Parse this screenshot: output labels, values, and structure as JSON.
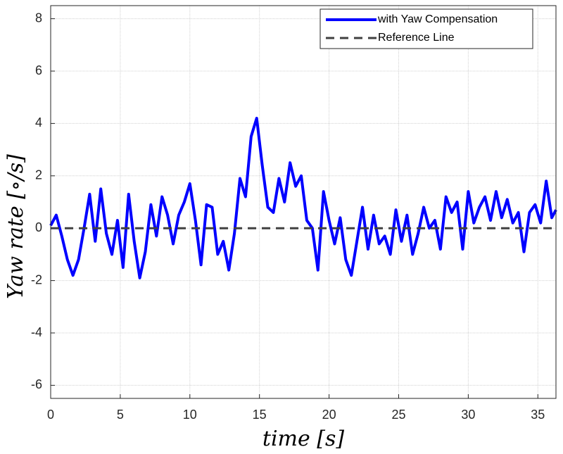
{
  "chart_data": {
    "type": "line",
    "xlabel": "time [s]",
    "ylabel": "Yaw rate [∘/s]",
    "xlim": [
      0,
      36.3
    ],
    "ylim": [
      -6.5,
      8.5
    ],
    "xticks": [
      0,
      5,
      10,
      15,
      20,
      25,
      30,
      35
    ],
    "yticks": [
      -6,
      -4,
      -2,
      0,
      2,
      4,
      6,
      8
    ],
    "grid": true,
    "legend": "upper right",
    "series": [
      {
        "name": "with Yaw Compensation",
        "color": "#0000ff",
        "line_style": "solid",
        "x": [
          0,
          0.4,
          0.8,
          1.2,
          1.6,
          2.0,
          2.4,
          2.8,
          3.2,
          3.6,
          4.0,
          4.4,
          4.8,
          5.2,
          5.6,
          6.0,
          6.4,
          6.8,
          7.2,
          7.6,
          8.0,
          8.4,
          8.8,
          9.2,
          9.6,
          10.0,
          10.4,
          10.8,
          11.2,
          11.6,
          12.0,
          12.4,
          12.8,
          13.2,
          13.6,
          14.0,
          14.4,
          14.8,
          15.2,
          15.6,
          16.0,
          16.4,
          16.8,
          17.2,
          17.6,
          18.0,
          18.4,
          18.8,
          19.2,
          19.6,
          20.0,
          20.4,
          20.8,
          21.2,
          21.6,
          22.0,
          22.4,
          22.8,
          23.2,
          23.6,
          24.0,
          24.4,
          24.8,
          25.2,
          25.6,
          26.0,
          26.4,
          26.8,
          27.2,
          27.6,
          28.0,
          28.4,
          28.8,
          29.2,
          29.6,
          30.0,
          30.4,
          30.8,
          31.2,
          31.6,
          32.0,
          32.4,
          32.8,
          33.2,
          33.6,
          34.0,
          34.4,
          34.8,
          35.2,
          35.6,
          36.0,
          36.3
        ],
        "values": [
          0.1,
          0.5,
          -0.3,
          -1.2,
          -1.8,
          -1.2,
          0.0,
          1.3,
          -0.5,
          1.5,
          -0.2,
          -1.0,
          0.3,
          -1.5,
          1.3,
          -0.5,
          -1.9,
          -0.9,
          0.9,
          -0.3,
          1.2,
          0.5,
          -0.6,
          0.5,
          1.0,
          1.7,
          0.3,
          -1.4,
          0.9,
          0.8,
          -1.0,
          -0.5,
          -1.6,
          -0.2,
          1.9,
          1.2,
          3.5,
          4.2,
          2.4,
          0.8,
          0.6,
          1.9,
          1.0,
          2.5,
          1.6,
          2.0,
          0.3,
          0.0,
          -1.6,
          1.4,
          0.3,
          -0.6,
          0.4,
          -1.2,
          -1.8,
          -0.5,
          0.8,
          -0.8,
          0.5,
          -0.6,
          -0.3,
          -1.0,
          0.7,
          -0.5,
          0.5,
          -1.0,
          -0.2,
          0.8,
          0.0,
          0.3,
          -0.8,
          1.2,
          0.6,
          1.0,
          -0.8,
          1.4,
          0.2,
          0.8,
          1.2,
          0.3,
          1.4,
          0.4,
          1.1,
          0.2,
          0.6,
          -0.9,
          0.6,
          0.9,
          0.2,
          1.8,
          0.4,
          0.7
        ]
      },
      {
        "name": "Reference Line",
        "color": "#404040",
        "line_style": "dashed",
        "x": [
          0,
          36.3
        ],
        "values": [
          0,
          0
        ]
      }
    ]
  }
}
